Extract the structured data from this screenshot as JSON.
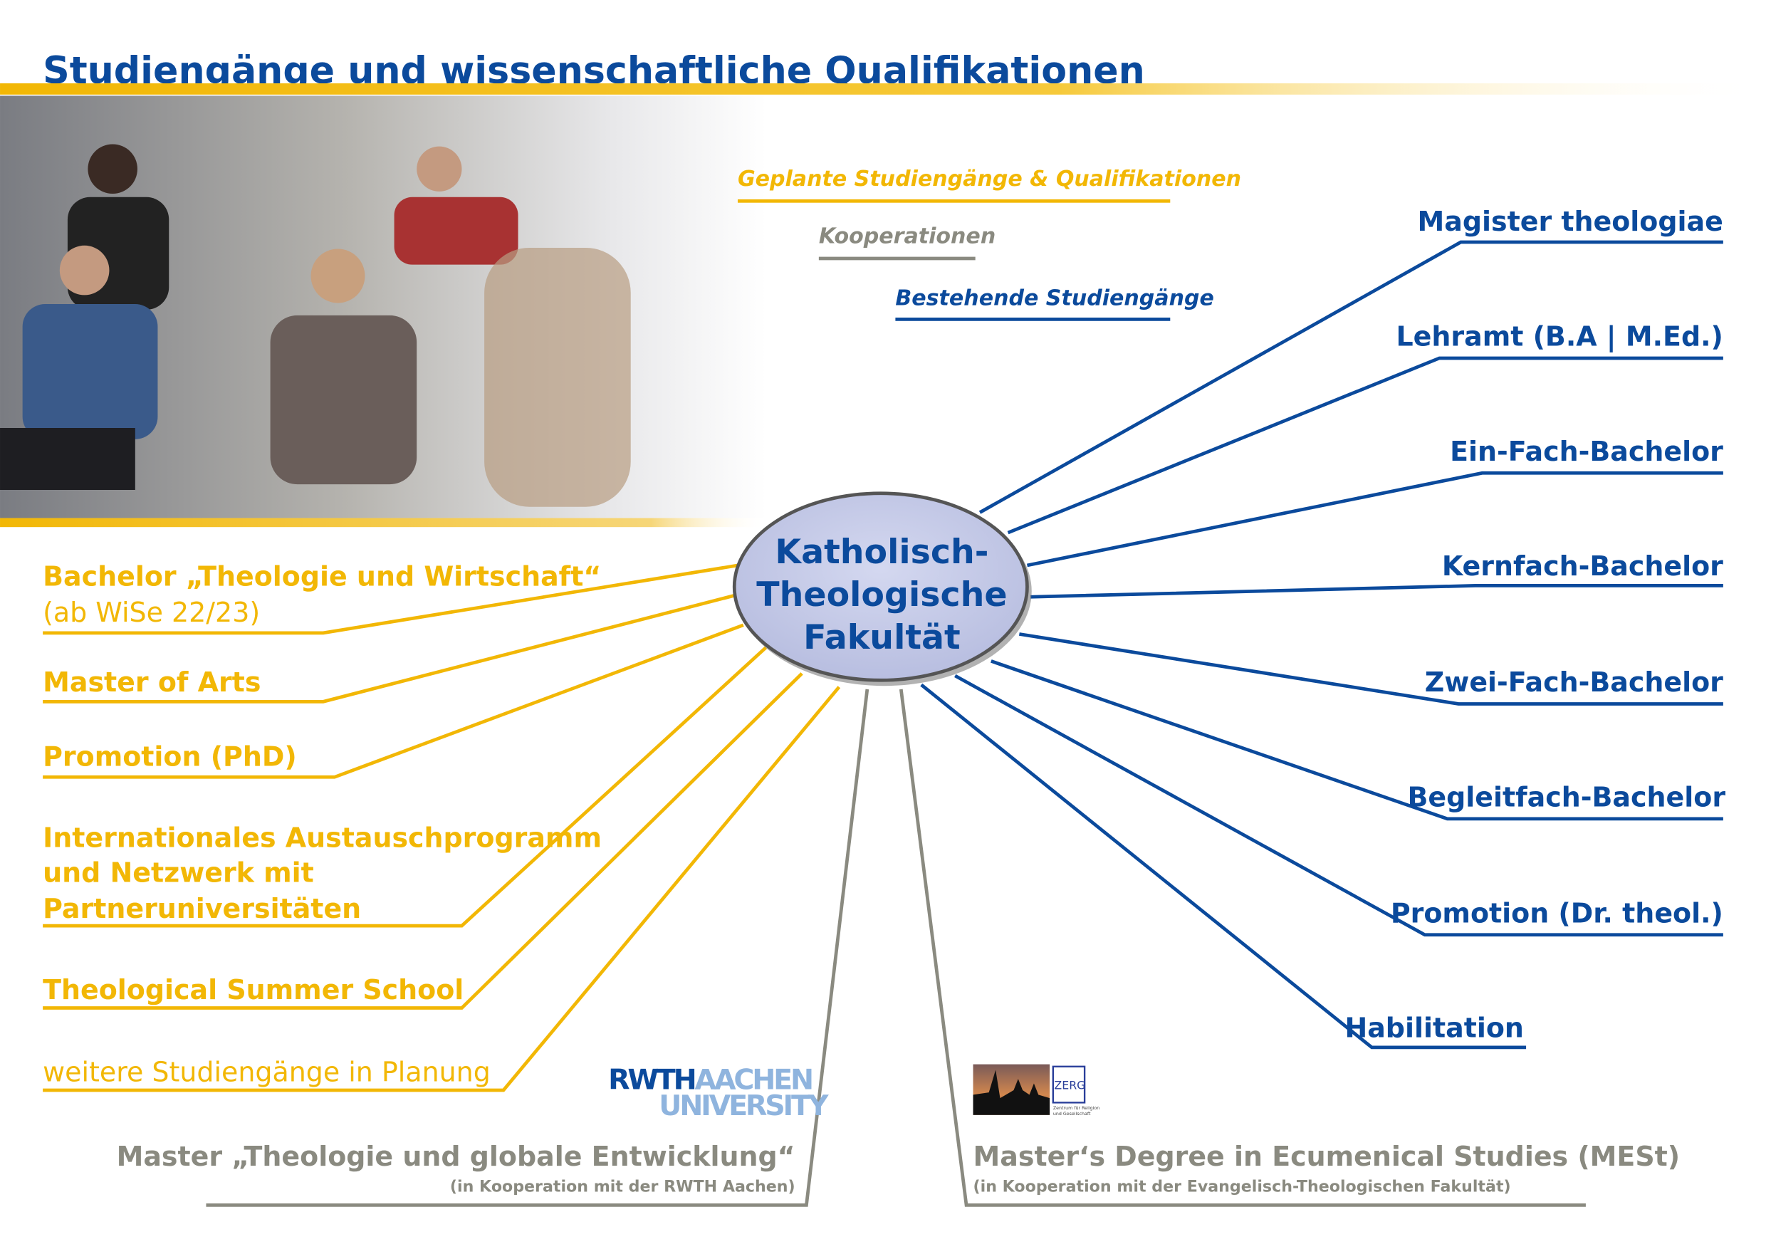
{
  "title": "Studiengänge und wissenschaftliche Qualifikationen",
  "colors": {
    "blue": "#0b4a9c",
    "yellow": "#f2b705",
    "gray": "#8a8a80",
    "center_fill": "#c8cdea"
  },
  "legend": {
    "planned": "Geplante Studiengänge & Qualifikationen",
    "cooperation": "Kooperationen",
    "existing": "Bestehende Studiengänge"
  },
  "center": {
    "line1": "Katholisch-",
    "line2": "Theologische",
    "line3": "Fakultät"
  },
  "existing": [
    "Magister theologiae",
    "Lehramt (B.A | M.Ed.)",
    "Ein-Fach-Bachelor",
    "Kernfach-Bachelor",
    "Zwei-Fach-Bachelor",
    "Begleitfach-Bachelor",
    "Promotion (Dr. theol.)",
    "Habilitation"
  ],
  "planned": {
    "bachelor": "Bachelor „Theologie und Wirtschaft“",
    "bachelor_note": "(ab WiSe 22/23)",
    "master": "Master of Arts",
    "phd": "Promotion (PhD)",
    "intl1": "Internationales Austauschprogramm",
    "intl2": "und Netzwerk mit",
    "intl3": "Partneruniversitäten",
    "summer": "Theological Summer School",
    "more": "weitere Studiengänge in Planung"
  },
  "cooperations": [
    {
      "title": "Master „Theologie und globale Entwicklung“",
      "note": "(in Kooperation mit der RWTH Aachen)",
      "logo": "RWTH AACHEN UNIVERSITY"
    },
    {
      "title": "Master‘s Degree in Ecumenical Studies (MESt)",
      "note": "(in Kooperation mit der Evangelisch-Theologischen Fakultät)",
      "logo": "ZERG Zentrum für Religion und Gesellschaft"
    }
  ]
}
